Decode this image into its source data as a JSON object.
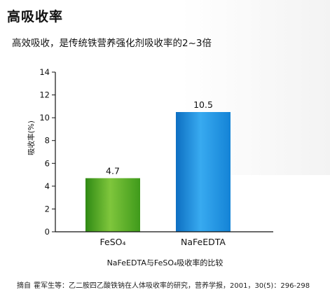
{
  "page": {
    "title": "高吸收率",
    "subtitle": "高效吸收，是传统铁营养强化剂吸收率的2~3倍",
    "caption": "NaFeEDTA与FeSO₄吸收率的比较",
    "source_prefix": "摘自",
    "source_text": "霍军生等：乙二胺四乙酸铁钠在人体吸收率的研究，营养学报，2001，30(5)：296-298"
  },
  "chart_data": {
    "type": "bar",
    "categories": [
      "FeSO₄",
      "NaFeEDTA"
    ],
    "values": [
      4.7,
      10.5
    ],
    "value_labels": [
      "4.7",
      "10.5"
    ],
    "title": "",
    "xlabel": "",
    "ylabel": "吸收率(%)",
    "ylim": [
      0,
      14
    ],
    "yticks": [
      "0",
      "2",
      "4",
      "6",
      "8",
      "10",
      "12",
      "14"
    ],
    "grid": false,
    "colors": [
      "#5dac2a",
      "#1f8fe0"
    ]
  }
}
